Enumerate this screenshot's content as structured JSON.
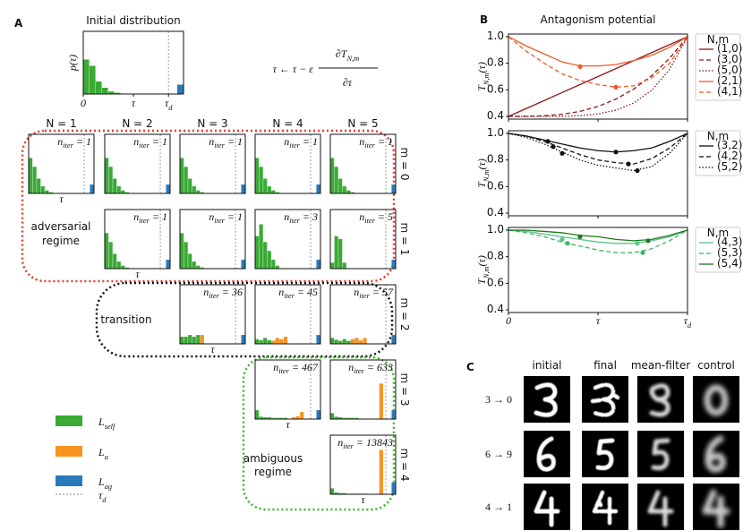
{
  "panel_a": {
    "letter": "A",
    "colors": {
      "self": "#3aaa35",
      "a": "#f7931e",
      "ag": "#2a7ab9"
    },
    "hist_xlim": [
      0,
      1
    ],
    "hist_ylim": [
      0,
      1
    ],
    "tau_d_position": 0.85,
    "initial": {
      "title": "Initial distribution",
      "ylabel": "p(τ)",
      "xticks": [
        0,
        {
          "value": 0.5,
          "label": "τ"
        },
        {
          "value": 0.85,
          "label": {
            "base": "τ",
            "sub": "d"
          }
        }
      ],
      "self": [
        0.55,
        0.45,
        0.2,
        0.1,
        0.04,
        0.02
      ],
      "a": [],
      "ag": [
        0,
        0,
        0,
        0,
        0,
        0,
        0,
        0,
        0,
        0,
        0,
        0,
        0,
        0,
        0,
        0.15
      ]
    },
    "equation": {
      "lhs": "τ ← τ − ε",
      "numerator": {
        "base": "∂T",
        "sub": "N,m"
      },
      "denominator": "∂τ"
    },
    "columns": [
      "N = 1",
      "N = 2",
      "N = 3",
      "N = 4",
      "N = 5"
    ],
    "n_iter_symbol": {
      "base": "n",
      "sub": "iter",
      "eq": "="
    },
    "tau_label": "τ",
    "rows": [
      {
        "label": "m = 0",
        "plots": [
          {
            "n_iter": 1,
            "self": [
              0.6,
              0.45,
              0.25,
              0.12,
              0.05,
              0.02
            ],
            "a": [],
            "ag": [
              0,
              0,
              0,
              0,
              0,
              0,
              0,
              0,
              0,
              0,
              0,
              0,
              0,
              0,
              0,
              0.15
            ]
          },
          {
            "n_iter": 1,
            "self": [
              0.6,
              0.45,
              0.25,
              0.12,
              0.05,
              0.02
            ],
            "a": [],
            "ag": [
              0,
              0,
              0,
              0,
              0,
              0,
              0,
              0,
              0,
              0,
              0,
              0,
              0,
              0,
              0,
              0.15
            ]
          },
          {
            "n_iter": 1,
            "self": [
              0.6,
              0.45,
              0.25,
              0.12,
              0.05,
              0.02
            ],
            "a": [],
            "ag": [
              0,
              0,
              0,
              0,
              0,
              0,
              0,
              0,
              0,
              0,
              0,
              0,
              0,
              0,
              0,
              0.15
            ]
          },
          {
            "n_iter": 1,
            "self": [
              0.6,
              0.45,
              0.25,
              0.12,
              0.05,
              0.02
            ],
            "a": [],
            "ag": [
              0,
              0,
              0,
              0,
              0,
              0,
              0,
              0,
              0,
              0,
              0,
              0,
              0,
              0,
              0,
              0.15
            ]
          },
          {
            "n_iter": 1,
            "self": [
              0.6,
              0.45,
              0.25,
              0.12,
              0.05,
              0.02
            ],
            "a": [],
            "ag": [
              0,
              0,
              0,
              0,
              0,
              0,
              0,
              0,
              0,
              0,
              0,
              0,
              0,
              0,
              0,
              0.15
            ]
          }
        ]
      },
      {
        "label": "m = 1",
        "plots": [
          {
            "n_iter": 1,
            "self": [
              0.6,
              0.45,
              0.25,
              0.12,
              0.05,
              0.02
            ],
            "a": [],
            "ag": [
              0,
              0,
              0,
              0,
              0,
              0,
              0,
              0,
              0,
              0,
              0,
              0,
              0,
              0,
              0,
              0.15
            ]
          },
          {
            "n_iter": 1,
            "self": [
              0.6,
              0.45,
              0.25,
              0.12,
              0.05,
              0.02
            ],
            "a": [],
            "ag": [
              0,
              0,
              0,
              0,
              0,
              0,
              0,
              0,
              0,
              0,
              0,
              0,
              0,
              0,
              0,
              0.15
            ]
          },
          {
            "n_iter": 3,
            "self": [
              0.55,
              0.75,
              0.45,
              0.3,
              0.15,
              0.05
            ],
            "a": [],
            "ag": [
              0,
              0,
              0,
              0,
              0,
              0,
              0,
              0,
              0,
              0,
              0,
              0,
              0,
              0,
              0,
              0.15
            ]
          },
          {
            "n_iter": 5,
            "self": [
              0.1,
              0.55,
              0.5,
              0.1
            ],
            "a": [],
            "ag": [
              0,
              0,
              0,
              0,
              0,
              0,
              0,
              0,
              0,
              0,
              0,
              0,
              0,
              0,
              0,
              0.15
            ]
          }
        ]
      },
      {
        "label": "m = 2",
        "plots": [
          {
            "n_iter": 36,
            "self": [
              0.12,
              0.12,
              0.15,
              0.12,
              0.15
            ],
            "a": [
              0,
              0,
              0,
              0,
              0,
              0.15
            ],
            "ag": [
              0,
              0,
              0,
              0,
              0,
              0,
              0,
              0,
              0,
              0,
              0,
              0,
              0,
              0,
              0,
              0.15
            ]
          },
          {
            "n_iter": 45,
            "self": [
              0.08,
              0.06,
              0.1,
              0.06,
              0.05,
              0.08,
              0.04
            ],
            "a": [
              0,
              0,
              0,
              0,
              0.05,
              0.1,
              0.08,
              0.12
            ],
            "ag": [
              0,
              0,
              0,
              0,
              0,
              0,
              0,
              0,
              0,
              0,
              0,
              0,
              0,
              0,
              0,
              0.15
            ]
          },
          {
            "n_iter": 57,
            "self": [
              0.1,
              0.07,
              0.05,
              0.08,
              0.05,
              0.06,
              0.05
            ],
            "a": [
              0,
              0,
              0,
              0,
              0,
              0.08,
              0.1,
              0.06,
              0.1
            ],
            "ag": [
              0,
              0,
              0,
              0,
              0,
              0,
              0,
              0,
              0,
              0,
              0,
              0,
              0,
              0,
              0,
              0.15
            ]
          }
        ]
      },
      {
        "label": "m = 3",
        "plots": [
          {
            "n_iter": 467,
            "self": [
              0.15,
              0.04,
              0.03,
              0.03,
              0.02,
              0.02,
              0.02,
              0.02
            ],
            "a": [
              0,
              0,
              0,
              0,
              0,
              0,
              0,
              0,
              0,
              0.03,
              0.05,
              0.12
            ],
            "ag": [
              0,
              0,
              0,
              0,
              0,
              0,
              0,
              0,
              0,
              0,
              0,
              0,
              0,
              0,
              0,
              0.15
            ]
          },
          {
            "n_iter": 633,
            "self": [
              0.1,
              0.04,
              0.03,
              0.02,
              0.02,
              0.02,
              0.02
            ],
            "a": [
              0,
              0,
              0,
              0,
              0,
              0,
              0,
              0,
              0,
              0,
              0,
              0,
              0.6
            ],
            "ag": [
              0,
              0,
              0,
              0,
              0,
              0,
              0,
              0,
              0,
              0,
              0,
              0,
              0,
              0,
              0,
              0.15
            ]
          }
        ]
      },
      {
        "label": "m = 4",
        "plots": [
          {
            "n_iter": 13843,
            "self": [
              0.1,
              0.03,
              0.02,
              0.02,
              0.01,
              0.01,
              0.01,
              0.01,
              0.01
            ],
            "a": [
              0,
              0,
              0,
              0,
              0,
              0,
              0,
              0,
              0,
              0,
              0,
              0,
              0.75
            ],
            "ag": [
              0,
              0,
              0,
              0,
              0,
              0,
              0,
              0,
              0,
              0,
              0,
              0,
              0,
              0,
              0,
              0.2
            ]
          }
        ]
      }
    ],
    "regimes": [
      {
        "lines": [
          "adversarial",
          "regime"
        ],
        "color": "#e03a2f"
      },
      {
        "lines": [
          "transition"
        ],
        "color": "#111111"
      },
      {
        "lines": [
          "ambiguous",
          "regime"
        ],
        "color": "#3cb428"
      }
    ],
    "legend": [
      {
        "label": {
          "base": "L",
          "sub": "self"
        },
        "color": "#3aaa35"
      },
      {
        "label": {
          "base": "L",
          "sub": "a"
        },
        "color": "#f7931e"
      },
      {
        "label": {
          "base": "L",
          "sub": "ag"
        },
        "color": "#2a7ab9"
      },
      {
        "label": {
          "base": "τ",
          "sub": "d"
        },
        "color": "#888888",
        "style": "dashed"
      }
    ]
  },
  "panel_b": {
    "letter": "B",
    "title": "Antagonism potential",
    "ylabel": {
      "base": "T",
      "sub": "N,m",
      "rest": "(τ)"
    },
    "legend_title": "N,m",
    "xlim": [
      0,
      1
    ],
    "xticks": [
      0,
      {
        "value": 0.5,
        "label": "τ"
      },
      {
        "value": 1,
        "label": {
          "base": "τ",
          "sub": "d"
        }
      }
    ],
    "ylim": [
      0.38,
      1.02
    ],
    "yticks": [
      {
        "value": 0.4,
        "label": "0.4"
      },
      {
        "value": 0.6,
        "label": "0.6"
      },
      {
        "value": 0.8,
        "label": "0.8"
      },
      {
        "value": 1.0,
        "label": "1.0"
      }
    ],
    "x": [
      0,
      0.1,
      0.2,
      0.3,
      0.4,
      0.5,
      0.6,
      0.7,
      0.8,
      0.9,
      1.0
    ],
    "panels": [
      {
        "series": [
          {
            "name": "(1,0)",
            "color": "#8b1a1a",
            "dash": "solid",
            "values": [
              0.4,
              0.46,
              0.52,
              0.58,
              0.64,
              0.7,
              0.76,
              0.82,
              0.88,
              0.94,
              1.0
            ],
            "markers": {
              "x": [],
              "y": []
            }
          },
          {
            "name": "(3,0)",
            "color": "#8b1a1a",
            "dash": "dashed",
            "values": [
              0.4,
              0.401,
              0.405,
              0.416,
              0.438,
              0.475,
              0.53,
              0.606,
              0.707,
              0.837,
              1.0
            ],
            "markers": {
              "x": [],
              "y": []
            }
          },
          {
            "name": "(5,0)",
            "color": "#8b1a1a",
            "dash": "dotted",
            "values": [
              0.4,
              0.4,
              0.4,
              0.401,
              0.406,
              0.419,
              0.447,
              0.501,
              0.597,
              0.754,
              1.0
            ],
            "markers": {
              "x": [],
              "y": []
            }
          },
          {
            "name": "(2,1)",
            "color": "#f05a28",
            "dash": "solid",
            "values": [
              1.0,
              0.93,
              0.87,
              0.81,
              0.78,
              0.78,
              0.79,
              0.82,
              0.86,
              0.92,
              1.0
            ],
            "markers": {
              "x": [
                0.4
              ],
              "y": [
                0.775
              ]
            }
          },
          {
            "name": "(4,1)",
            "color": "#f05a28",
            "dash": "dashed",
            "values": [
              1.0,
              0.89,
              0.8,
              0.72,
              0.67,
              0.64,
              0.62,
              0.63,
              0.69,
              0.8,
              1.0
            ],
            "markers": {
              "x": [
                0.6
              ],
              "y": [
                0.62
              ]
            }
          }
        ]
      },
      {
        "series": [
          {
            "name": "(3,2)",
            "color": "#111111",
            "dash": "solid",
            "values": [
              1.0,
              0.98,
              0.95,
              0.92,
              0.89,
              0.87,
              0.86,
              0.87,
              0.89,
              0.94,
              1.0
            ],
            "markers": {
              "x": [
                0.22,
                0.6
              ],
              "y": [
                0.94,
                0.86
              ]
            }
          },
          {
            "name": "(4,2)",
            "color": "#111111",
            "dash": "dashed",
            "values": [
              1.0,
              0.98,
              0.94,
              0.89,
              0.84,
              0.8,
              0.78,
              0.77,
              0.81,
              0.89,
              1.0
            ],
            "markers": {
              "x": [
                0.25,
                0.67
              ],
              "y": [
                0.9,
                0.77
              ]
            }
          },
          {
            "name": "(5,2)",
            "color": "#111111",
            "dash": "dotted",
            "values": [
              1.0,
              0.97,
              0.92,
              0.86,
              0.8,
              0.76,
              0.74,
              0.72,
              0.75,
              0.85,
              1.0
            ],
            "markers": {
              "x": [
                0.3,
                0.72
              ],
              "y": [
                0.85,
                0.72
              ]
            }
          }
        ]
      },
      {
        "series": [
          {
            "name": "(4,3)",
            "color": "#5cc48a",
            "dash": "solid",
            "values": [
              1.0,
              0.99,
              0.97,
              0.95,
              0.93,
              0.91,
              0.9,
              0.9,
              0.92,
              0.95,
              1.0
            ],
            "markers": {
              "x": [
                0.3,
                0.72
              ],
              "y": [
                0.93,
                0.9
              ]
            }
          },
          {
            "name": "(5,3)",
            "color": "#3db56a",
            "dash": "dashed",
            "values": [
              1.0,
              0.98,
              0.95,
              0.91,
              0.88,
              0.85,
              0.83,
              0.83,
              0.86,
              0.92,
              1.0
            ],
            "markers": {
              "x": [
                0.33,
                0.75
              ],
              "y": [
                0.9,
                0.83
              ]
            }
          },
          {
            "name": "(5,4)",
            "color": "#1a7a1a",
            "dash": "solid",
            "values": [
              1.0,
              1.0,
              0.99,
              0.98,
              0.96,
              0.95,
              0.93,
              0.92,
              0.93,
              0.96,
              1.0
            ],
            "markers": {
              "x": [
                0.4,
                0.78
              ],
              "y": [
                0.95,
                0.92
              ]
            }
          }
        ]
      }
    ]
  },
  "panel_c": {
    "letter": "C",
    "columns": [
      "initial",
      "final",
      "mean-filter",
      "control"
    ],
    "rows": [
      "3 → 0",
      "6 → 9",
      "4 → 1"
    ]
  }
}
